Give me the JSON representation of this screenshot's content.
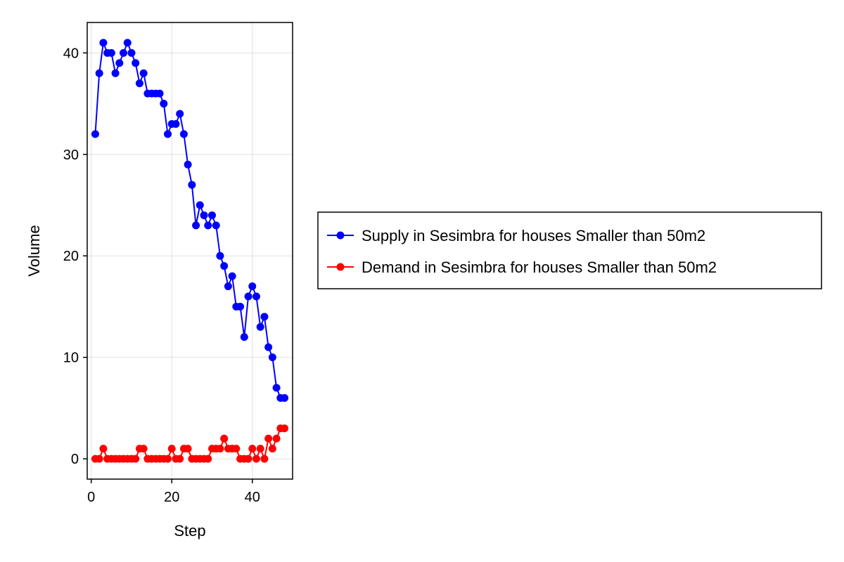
{
  "chart_data": {
    "type": "line",
    "title": "",
    "xlabel": "Step",
    "ylabel": "Volume",
    "xlim": [
      -1,
      50
    ],
    "ylim": [
      -2,
      43
    ],
    "xticks": [
      0,
      20,
      40
    ],
    "yticks": [
      0,
      10,
      20,
      30,
      40
    ],
    "grid": true,
    "legend_position": "right",
    "x": [
      1,
      2,
      3,
      4,
      5,
      6,
      7,
      8,
      9,
      10,
      11,
      12,
      13,
      14,
      15,
      16,
      17,
      18,
      19,
      20,
      21,
      22,
      23,
      24,
      25,
      26,
      27,
      28,
      29,
      30,
      31,
      32,
      33,
      34,
      35,
      36,
      37,
      38,
      39,
      40,
      41,
      42,
      43,
      44,
      45,
      46,
      47,
      48
    ],
    "series": [
      {
        "name": "Supply in Sesimbra for houses Smaller than 50m2",
        "color": "#0000ff",
        "values": [
          32,
          38,
          41,
          40,
          40,
          38,
          39,
          40,
          41,
          40,
          39,
          37,
          38,
          36,
          36,
          36,
          36,
          35,
          32,
          33,
          33,
          34,
          32,
          29,
          27,
          23,
          25,
          24,
          23,
          24,
          23,
          20,
          19,
          17,
          18,
          15,
          15,
          12,
          16,
          17,
          16,
          13,
          14,
          11,
          10,
          7,
          6,
          6
        ]
      },
      {
        "name": "Demand in Sesimbra for houses Smaller than 50m2",
        "color": "#ff0000",
        "values": [
          0,
          0,
          1,
          0,
          0,
          0,
          0,
          0,
          0,
          0,
          0,
          1,
          1,
          0,
          0,
          0,
          0,
          0,
          0,
          1,
          0,
          0,
          1,
          1,
          0,
          0,
          0,
          0,
          0,
          1,
          1,
          1,
          2,
          1,
          1,
          1,
          0,
          0,
          0,
          1,
          0,
          1,
          0,
          2,
          1,
          2,
          3,
          3
        ]
      }
    ]
  }
}
